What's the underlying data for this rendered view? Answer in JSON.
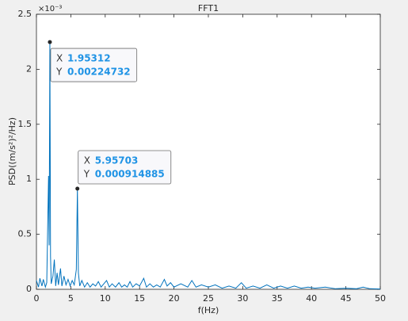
{
  "chart_data": {
    "type": "line",
    "title": "FFT1",
    "x_label": "f(Hz)",
    "y_label": "PSD((m/s²)²/Hz)",
    "y_exponent_label": "×10⁻³",
    "xlim": [
      0,
      50
    ],
    "xticks": [
      0,
      5,
      10,
      15,
      20,
      25,
      30,
      35,
      40,
      45,
      50
    ],
    "ylim": [
      0,
      0.0025
    ],
    "yticks": [
      0,
      {
        "value": 0.0005,
        "label": "0.5"
      },
      {
        "value": 0.001,
        "label": "1"
      },
      {
        "value": 0.0015,
        "label": "1.5"
      },
      {
        "value": 0.002,
        "label": "2"
      },
      {
        "value": 0.0025,
        "label": "2.5"
      }
    ],
    "grid": false,
    "series": [
      {
        "color": "#0072bd",
        "x": [
          0,
          0.3,
          0.5,
          0.8,
          1.0,
          1.3,
          1.5,
          1.76,
          1.85,
          1.95312,
          2.05,
          2.15,
          2.4,
          2.6,
          2.8,
          3.0,
          3.2,
          3.5,
          3.7,
          4.0,
          4.3,
          4.6,
          4.9,
          5.2,
          5.5,
          5.8,
          5.95703,
          6.1,
          6.3,
          6.6,
          7.0,
          7.4,
          7.8,
          8.2,
          8.6,
          9.0,
          9.4,
          9.8,
          10.2,
          10.6,
          11.0,
          11.5,
          12.0,
          12.4,
          12.8,
          13.2,
          13.6,
          14.0,
          14.5,
          15.0,
          15.6,
          16.0,
          16.5,
          17.0,
          17.5,
          18.0,
          18.6,
          19.0,
          19.5,
          20.0,
          21.0,
          22.0,
          22.6,
          23.2,
          24.0,
          25.0,
          26.0,
          27.0,
          28.0,
          29.0,
          29.8,
          30.5,
          31.5,
          32.5,
          33.5,
          34.5,
          35.5,
          36.5,
          37.5,
          38.5,
          39.5,
          40.5,
          42,
          43.5,
          45,
          46.5,
          47.5,
          48.5,
          50
        ],
        "values": [
          8e-05,
          2e-05,
          0.0001,
          3e-05,
          9e-05,
          2e-05,
          6e-05,
          0.00103,
          0.0004,
          0.00224732,
          0.0003,
          5e-05,
          0.00012,
          0.00027,
          3e-05,
          0.00015,
          4e-05,
          0.00019,
          3e-05,
          0.00012,
          4e-05,
          9e-05,
          3e-05,
          8e-05,
          4e-05,
          0.00018,
          0.000914885,
          0.00015,
          3e-05,
          8e-05,
          2e-05,
          6e-05,
          2e-05,
          5e-05,
          3e-05,
          7e-05,
          2e-05,
          5e-05,
          8e-05,
          2e-05,
          5e-05,
          2e-05,
          6e-05,
          2e-05,
          4e-05,
          2e-05,
          7e-05,
          2e-05,
          5e-05,
          3e-05,
          0.0001,
          2e-05,
          5e-05,
          2e-05,
          4e-05,
          2e-05,
          9e-05,
          3e-05,
          6e-05,
          2e-05,
          5e-05,
          2e-05,
          8e-05,
          2e-05,
          4e-05,
          2e-05,
          4e-05,
          1e-05,
          3e-05,
          1e-05,
          6e-05,
          1e-05,
          3e-05,
          1e-05,
          4e-05,
          1e-05,
          3e-05,
          1e-05,
          3e-05,
          1e-05,
          2e-05,
          1e-05,
          2e-05,
          5e-06,
          1e-05,
          5e-06,
          2e-05,
          5e-06,
          3e-06
        ]
      }
    ],
    "datatip_labels": [
      "X",
      "Y"
    ],
    "datatip_points": [
      9,
      26
    ]
  }
}
